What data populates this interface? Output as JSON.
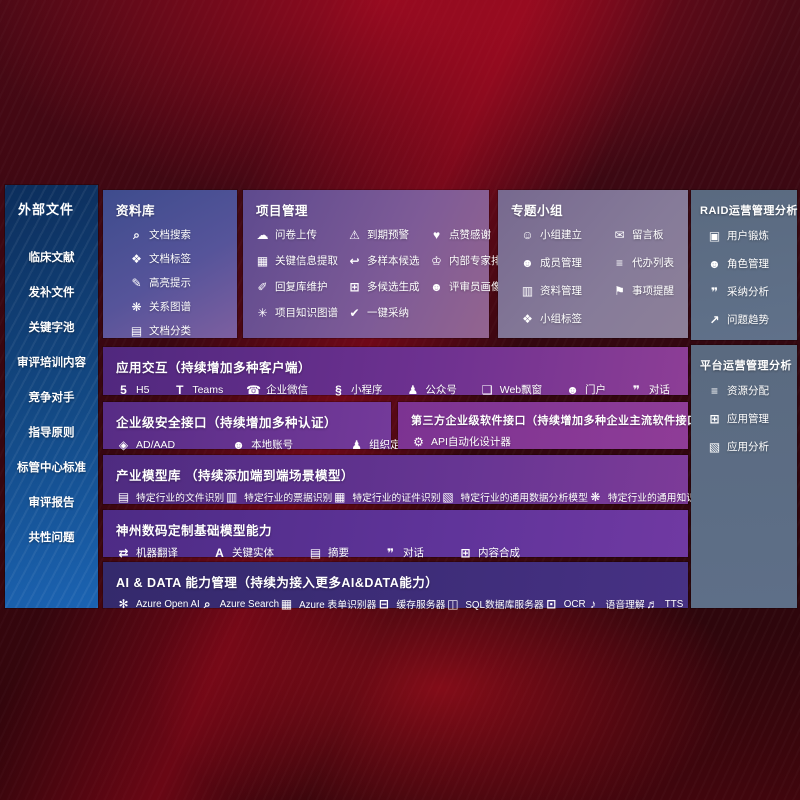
{
  "colors": {
    "background_red": "#3f0a13",
    "sidebar_blue": "#1558a2",
    "panel_purple": "#6d3190",
    "panel_indigo": "#3e2d79",
    "panel_gray_blue": "#5d6d85",
    "text": "#ffffff"
  },
  "left_sidebar": {
    "title": "外部文件",
    "items": [
      {
        "label": "临床文献"
      },
      {
        "label": "发补文件"
      },
      {
        "label": "关键字池"
      },
      {
        "label": "审评培训内容"
      },
      {
        "label": "竞争对手"
      },
      {
        "label": "指导原则"
      },
      {
        "label": "标管中心标准"
      },
      {
        "label": "审评报告"
      },
      {
        "label": "共性问题"
      }
    ]
  },
  "panels": {
    "repository": {
      "title": "资料库",
      "items": [
        {
          "label": "文档搜索",
          "icon": "doc-search"
        },
        {
          "label": "文档标签",
          "icon": "doc-tag"
        },
        {
          "label": "高亮提示",
          "icon": "highlight-pen"
        },
        {
          "label": "关系图谱",
          "icon": "relation-graph"
        },
        {
          "label": "文档分类",
          "icon": "doc-classify"
        }
      ]
    },
    "project": {
      "title": "项目管理",
      "items": [
        {
          "label": "问卷上传",
          "icon": "cloud-upload"
        },
        {
          "label": "到期预警",
          "icon": "due-alarm"
        },
        {
          "label": "点赞感谢",
          "icon": "thumbs-up"
        },
        {
          "label": "关键信息提取",
          "icon": "info-extract"
        },
        {
          "label": "多样本候选",
          "icon": "multi-sample"
        },
        {
          "label": "内部专家排名",
          "icon": "expert-rank"
        },
        {
          "label": "回复库维护",
          "icon": "reply-maintain"
        },
        {
          "label": "多候选生成",
          "icon": "multi-generate"
        },
        {
          "label": "评审员画像",
          "icon": "reviewer-portrait"
        },
        {
          "label": "项目知识图谱",
          "icon": "knowledge-graph"
        },
        {
          "label": "一键采纳",
          "icon": "one-click-adopt"
        }
      ]
    },
    "group": {
      "title": "专题小组",
      "items": [
        {
          "label": "小组建立",
          "icon": "group-create"
        },
        {
          "label": "留言板",
          "icon": "message-board"
        },
        {
          "label": "成员管理",
          "icon": "member-manage"
        },
        {
          "label": "代办列表",
          "icon": "todo-list"
        },
        {
          "label": "资料管理",
          "icon": "data-manage"
        },
        {
          "label": "事项提醒",
          "icon": "item-remind"
        },
        {
          "label": "小组标签",
          "icon": "group-tag"
        }
      ]
    },
    "raid": {
      "title": "RAID运营管理分析",
      "items": [
        {
          "label": "用户锻炼",
          "icon": "user-training"
        },
        {
          "label": "角色管理",
          "icon": "role-manage"
        },
        {
          "label": "采纳分析",
          "icon": "adopt-analysis"
        },
        {
          "label": "问题趋势",
          "icon": "issue-trend"
        }
      ]
    },
    "platform": {
      "title": "平台运营管理分析",
      "items": [
        {
          "label": "资源分配",
          "icon": "resource-alloc"
        },
        {
          "label": "应用管理",
          "icon": "app-manage"
        },
        {
          "label": "应用分析",
          "icon": "app-analysis"
        }
      ]
    },
    "interaction": {
      "title": "应用交互（持续增加多种客户端）",
      "items": [
        {
          "label": "H5",
          "icon": "h5"
        },
        {
          "label": "Teams",
          "icon": "teams"
        },
        {
          "label": "企业微信",
          "icon": "wechat-work"
        },
        {
          "label": "小程序",
          "icon": "mini-program"
        },
        {
          "label": "公众号",
          "icon": "official-account"
        },
        {
          "label": "Web飘窗",
          "icon": "web-popup"
        },
        {
          "label": "门户",
          "icon": "portal"
        },
        {
          "label": "对话",
          "icon": "dialog"
        }
      ]
    },
    "security": {
      "title": "企业级安全接口（持续增加多种认证）",
      "items": [
        {
          "label": "AD/AAD",
          "icon": "ad-aad"
        },
        {
          "label": "本地账号",
          "icon": "local-account"
        },
        {
          "label": "组织定义",
          "icon": "org-define"
        }
      ]
    },
    "third_party": {
      "title": "第三方企业级软件接口（持续增加多种企业主流软件接口）",
      "items": [
        {
          "label": "API自动化设计器",
          "icon": "api-designer"
        }
      ]
    },
    "industry_models": {
      "title": "产业模型库 （持续添加端到端场景模型）",
      "items": [
        {
          "label": "特定行业的文件识别",
          "icon": "file-recog"
        },
        {
          "label": "特定行业的票据识别",
          "icon": "bill-recog"
        },
        {
          "label": "特定行业的证件识别",
          "icon": "cert-recog"
        },
        {
          "label": "特定行业的通用数据分析模型",
          "icon": "data-analysis-model"
        },
        {
          "label": "特定行业的通用知识图谱模型",
          "icon": "kg-model"
        }
      ]
    },
    "base_models": {
      "title": "神州数码定制基础模型能力",
      "items": [
        {
          "label": "机器翻译",
          "icon": "machine-translate"
        },
        {
          "label": "关键实体",
          "icon": "key-entity"
        },
        {
          "label": "摘要",
          "icon": "summary"
        },
        {
          "label": "对话",
          "icon": "dialog"
        },
        {
          "label": "内容合成",
          "icon": "content-compose"
        }
      ]
    },
    "ai_data": {
      "title": "AI & DATA 能力管理（持续为接入更多AI&DATA能力）",
      "items": [
        {
          "label": "Azure Open AI",
          "icon": "azure-openai"
        },
        {
          "label": "Azure Search",
          "icon": "azure-search"
        },
        {
          "label": "Azure 表单识别器",
          "icon": "form-recognizer"
        },
        {
          "label": "缓存服务器",
          "icon": "cache-server"
        },
        {
          "label": "SQL数据库服务器",
          "icon": "sql-server"
        },
        {
          "label": "OCR",
          "icon": "ocr"
        },
        {
          "label": "语音理解",
          "icon": "speech-understand"
        },
        {
          "label": "TTS",
          "icon": "tts"
        }
      ]
    }
  },
  "icons": {
    "doc-search": "⌕",
    "doc-tag": "❖",
    "highlight-pen": "✎",
    "relation-graph": "❋",
    "doc-classify": "▤",
    "cloud-upload": "☁",
    "due-alarm": "⚠",
    "thumbs-up": "♥",
    "info-extract": "▦",
    "multi-sample": "↩",
    "expert-rank": "♔",
    "reply-maintain": "✐",
    "multi-generate": "⊞",
    "reviewer-portrait": "☻",
    "knowledge-graph": "✳",
    "one-click-adopt": "✔",
    "group-create": "☺",
    "message-board": "✉",
    "member-manage": "☻",
    "todo-list": "≡",
    "data-manage": "▥",
    "item-remind": "⚑",
    "group-tag": "❖",
    "user-training": "▣",
    "role-manage": "☻",
    "adopt-analysis": "❞",
    "issue-trend": "↗",
    "resource-alloc": "≡",
    "app-manage": "⊞",
    "app-analysis": "▧",
    "h5": "5",
    "teams": "T",
    "wechat-work": "☎",
    "mini-program": "§",
    "official-account": "♟",
    "web-popup": "❑",
    "portal": "☻",
    "dialog": "❞",
    "ad-aad": "◈",
    "local-account": "☻",
    "org-define": "♟",
    "api-designer": "⚙",
    "file-recog": "▤",
    "bill-recog": "▥",
    "cert-recog": "▦",
    "data-analysis-model": "▧",
    "kg-model": "❋",
    "machine-translate": "⇄",
    "key-entity": "A",
    "summary": "▤",
    "content-compose": "⊞",
    "azure-openai": "✻",
    "azure-search": "⌕",
    "form-recognizer": "▦",
    "cache-server": "⊟",
    "sql-server": "◫",
    "ocr": "⊡",
    "speech-understand": "♪",
    "tts": "♬"
  }
}
